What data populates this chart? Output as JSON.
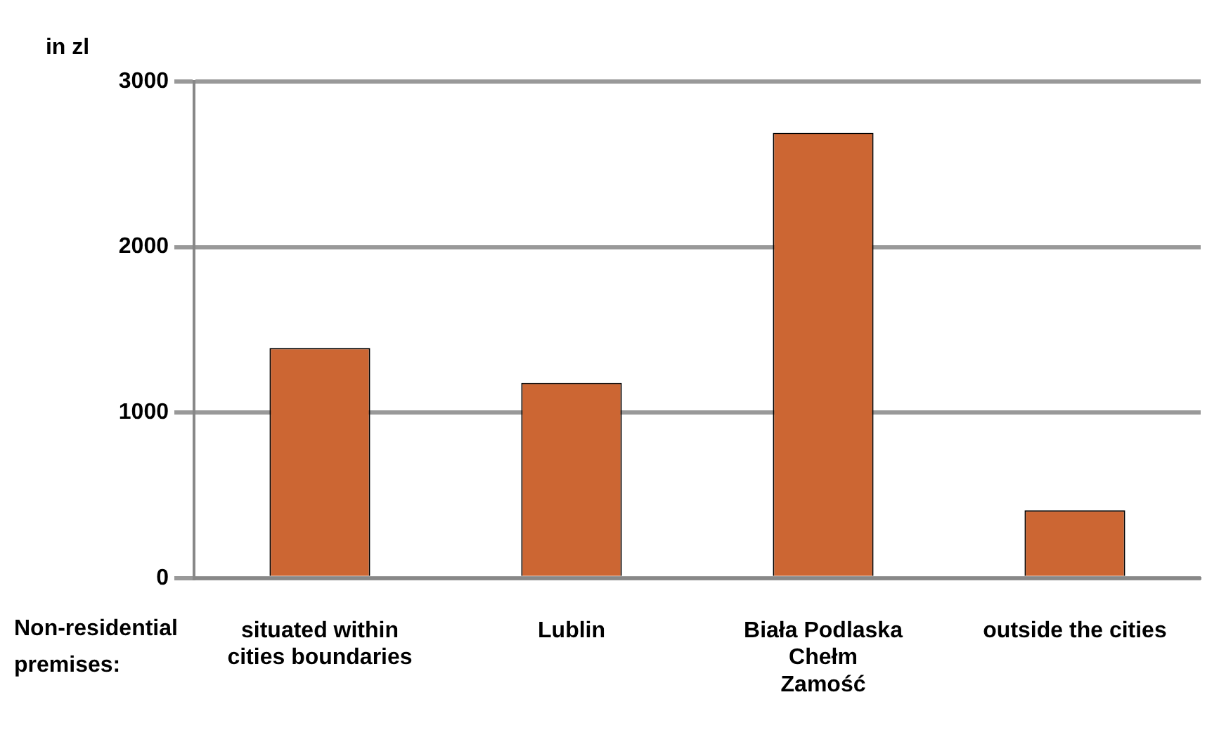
{
  "chart_data": {
    "type": "bar",
    "ylabel": "in zl",
    "categories": [
      "situated within\ncities boundaries",
      "Lublin",
      "Biała Podlaska\nChełm\nZamość",
      "outside the cities"
    ],
    "values": [
      1390,
      1180,
      2690,
      410
    ],
    "color": "#cc6633",
    "ylim": [
      0,
      3000
    ],
    "yticks": [
      0,
      1000,
      2000,
      3000
    ],
    "grid": "y",
    "legend": false,
    "annotations": [
      "Non-residential\npremises:"
    ]
  }
}
